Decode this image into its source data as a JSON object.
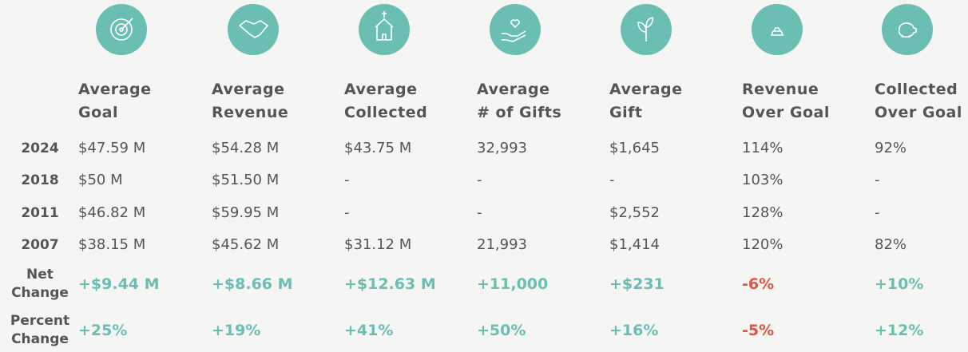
{
  "table": {
    "columns": [
      [
        "Average",
        "Goal"
      ],
      [
        "Average",
        "Revenue"
      ],
      [
        "Average",
        "Collected"
      ],
      [
        "Average",
        "# of Gifts"
      ],
      [
        "Average",
        "Gift"
      ],
      [
        "Revenue",
        "Over Goal"
      ],
      [
        "Collected",
        "Over Goal"
      ]
    ],
    "rows": [
      {
        "label": [
          "2024"
        ],
        "values": [
          "$47.59 M",
          "$54.28 M",
          "$43.75 M",
          "32,993",
          "$1,645",
          "114%",
          "92%"
        ]
      },
      {
        "label": [
          "2018"
        ],
        "values": [
          "$50 M",
          "$51.50 M",
          "-",
          "-",
          "-",
          "103%",
          "-"
        ]
      },
      {
        "label": [
          "2011"
        ],
        "values": [
          "$46.82 M",
          "$59.95 M",
          "-",
          "-",
          "$2,552",
          "128%",
          "-"
        ]
      },
      {
        "label": [
          "2007"
        ],
        "values": [
          "$38.15 M",
          "$45.62 M",
          "$31.12 M",
          "21,993",
          "$1,414",
          "120%",
          "82%"
        ]
      },
      {
        "label": [
          "Net",
          "Change"
        ],
        "values": [
          "+$9.44 M",
          "+$8.66 M",
          "+$12.63 M",
          "+11,000",
          "+$231",
          "-6%",
          "+10%"
        ],
        "highlight": true
      },
      {
        "label": [
          "Percent",
          "Change"
        ],
        "values": [
          "+25%",
          "+19%",
          "+41%",
          "+50%",
          "+16%",
          "-5%",
          "+12%"
        ],
        "highlight": true
      }
    ]
  }
}
